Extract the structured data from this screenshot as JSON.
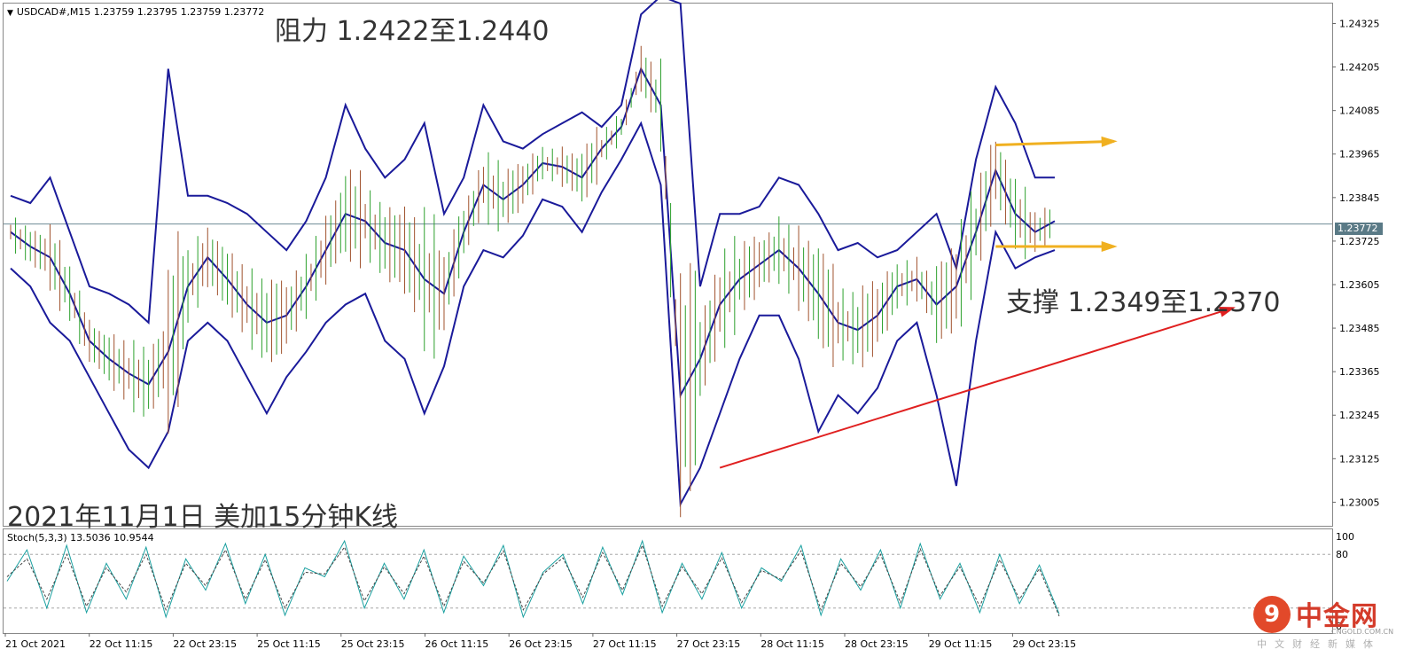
{
  "header": {
    "symbol_line": "USDCAD#,M15  1.23759 1.23795 1.23759 1.23772"
  },
  "annotations": {
    "resistance": "阻力 1.2422至1.2440",
    "support": "支撑 1.2349至1.2370",
    "caption": "2021年11月1日 美加15分钟K线"
  },
  "last_price": "1.23772",
  "stoch_label": "Stoch(5,3,3) 13.5036 10.9544",
  "watermark": {
    "logo_glyph": "9",
    "name": "中金网",
    "site": "CNGOLD.COM.CN",
    "tagline": "中文财经新媒体"
  },
  "chart_data": [
    {
      "type": "line",
      "title": "USDCAD#,M15",
      "y_axis_ticks": [
        "1.24325",
        "1.24205",
        "1.24085",
        "1.23965",
        "1.23845",
        "1.23725",
        "1.23605",
        "1.23485",
        "1.23365",
        "1.23245",
        "1.23125",
        "1.23005"
      ],
      "ylim": [
        1.2294,
        1.2438
      ],
      "x_axis_ticks": [
        "21 Oct 2021",
        "22 Oct 11:15",
        "22 Oct 23:15",
        "25 Oct 11:15",
        "25 Oct 23:15",
        "26 Oct 11:15",
        "26 Oct 23:15",
        "27 Oct 11:15",
        "27 Oct 23:15",
        "28 Oct 11:15",
        "28 Oct 23:15",
        "29 Oct 11:15",
        "29 Oct 23:15"
      ],
      "current_price": 1.23772,
      "series": [
        {
          "name": "middle-band",
          "color": "#1a1a9a",
          "values": [
            1.2375,
            1.2371,
            1.2368,
            1.2358,
            1.2345,
            1.234,
            1.2336,
            1.2333,
            1.2342,
            1.236,
            1.2368,
            1.2362,
            1.2355,
            1.235,
            1.2352,
            1.236,
            1.237,
            1.238,
            1.2378,
            1.2372,
            1.237,
            1.2362,
            1.2358,
            1.2375,
            1.2388,
            1.2384,
            1.2388,
            1.2394,
            1.2393,
            1.239,
            1.2398,
            1.2404,
            1.242,
            1.241,
            1.233,
            1.234,
            1.2355,
            1.2362,
            1.2366,
            1.237,
            1.2365,
            1.2358,
            1.235,
            1.2348,
            1.2352,
            1.236,
            1.2362,
            1.2355,
            1.236,
            1.2375,
            1.2392,
            1.238,
            1.2375,
            1.2378
          ]
        },
        {
          "name": "upper-band",
          "color": "#1a1a9a",
          "values": [
            1.2385,
            1.2383,
            1.239,
            1.2375,
            1.236,
            1.2358,
            1.2355,
            1.235,
            1.242,
            1.2385,
            1.2385,
            1.2383,
            1.238,
            1.2375,
            1.237,
            1.2378,
            1.239,
            1.241,
            1.2398,
            1.239,
            1.2395,
            1.2405,
            1.238,
            1.239,
            1.241,
            1.24,
            1.2398,
            1.2402,
            1.2405,
            1.2408,
            1.2404,
            1.241,
            1.2435,
            1.244,
            1.2438,
            1.236,
            1.238,
            1.238,
            1.2382,
            1.239,
            1.2388,
            1.238,
            1.237,
            1.2372,
            1.2368,
            1.237,
            1.2375,
            1.238,
            1.2365,
            1.2395,
            1.2415,
            1.2405,
            1.239,
            1.239
          ]
        },
        {
          "name": "lower-band",
          "color": "#1a1a9a",
          "values": [
            1.2365,
            1.236,
            1.235,
            1.2345,
            1.2335,
            1.2325,
            1.2315,
            1.231,
            1.232,
            1.2345,
            1.235,
            1.2345,
            1.2335,
            1.2325,
            1.2335,
            1.2342,
            1.235,
            1.2355,
            1.2358,
            1.2345,
            1.234,
            1.2325,
            1.2338,
            1.236,
            1.237,
            1.2368,
            1.2374,
            1.2384,
            1.2382,
            1.2375,
            1.2386,
            1.2395,
            1.2405,
            1.2388,
            1.23,
            1.231,
            1.2325,
            1.234,
            1.2352,
            1.2352,
            1.234,
            1.232,
            1.233,
            1.2325,
            1.2332,
            1.2345,
            1.235,
            1.233,
            1.2305,
            1.2345,
            1.2375,
            1.2365,
            1.2368,
            1.237
          ]
        }
      ],
      "annotation_lines": [
        {
          "name": "resistance-arrow",
          "color": "#f0b020",
          "from": [
            50,
            1.2399
          ],
          "to": [
            56,
            1.24
          ]
        },
        {
          "name": "support-arrow",
          "color": "#f0b020",
          "from": [
            50,
            1.2371
          ],
          "to": [
            56,
            1.2371
          ]
        },
        {
          "name": "trend-arrow",
          "color": "#e02020",
          "from": [
            36,
            1.231
          ],
          "to": [
            62,
            1.2354
          ]
        }
      ]
    },
    {
      "type": "line",
      "title": "Stoch(5,3,3)",
      "y_axis_ticks": [
        "100",
        "80",
        "0"
      ],
      "ylim": [
        0,
        100
      ],
      "levels": [
        80,
        20
      ],
      "series": [
        {
          "name": "main",
          "color": "#1aa0a0",
          "values": [
            50,
            85,
            20,
            90,
            15,
            70,
            30,
            88,
            10,
            75,
            40,
            92,
            25,
            80,
            12,
            65,
            55,
            95,
            20,
            70,
            30,
            85,
            15,
            78,
            45,
            90,
            10,
            60,
            80,
            25,
            88,
            35,
            95,
            15,
            70,
            30,
            82,
            20,
            65,
            50,
            90,
            12,
            75,
            40,
            85,
            20,
            92,
            30,
            70,
            15,
            80,
            25,
            68,
            13.5036
          ]
        },
        {
          "name": "signal",
          "color": "#444444",
          "values": [
            55,
            75,
            30,
            80,
            22,
            65,
            38,
            80,
            18,
            70,
            45,
            85,
            30,
            74,
            20,
            60,
            58,
            88,
            28,
            66,
            36,
            78,
            22,
            72,
            48,
            84,
            18,
            58,
            76,
            32,
            82,
            40,
            90,
            22,
            66,
            36,
            76,
            26,
            62,
            52,
            84,
            18,
            70,
            44,
            80,
            26,
            86,
            34,
            66,
            22,
            74,
            30,
            64,
            10.9544
          ]
        }
      ]
    }
  ]
}
